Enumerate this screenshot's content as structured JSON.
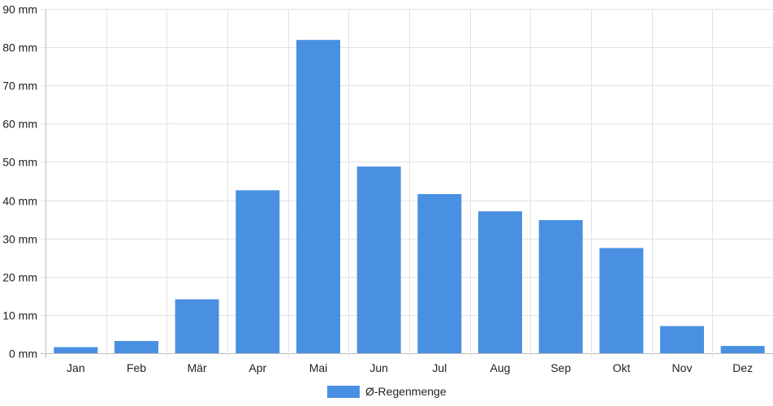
{
  "chart_data": {
    "type": "bar",
    "title": "",
    "xlabel": "",
    "ylabel": "",
    "categories": [
      "Jan",
      "Feb",
      "Mär",
      "Apr",
      "Mai",
      "Jun",
      "Jul",
      "Aug",
      "Sep",
      "Okt",
      "Nov",
      "Dez"
    ],
    "series": [
      {
        "name": "Ø-Regenmenge",
        "color": "#4a90e2",
        "values": [
          1.6,
          3.2,
          14.1,
          42.6,
          81.9,
          48.8,
          41.6,
          37.1,
          34.8,
          27.5,
          7.1,
          1.9
        ]
      }
    ],
    "unit": "mm",
    "ylim": [
      0,
      90
    ],
    "yticks": [
      0,
      10,
      20,
      30,
      40,
      50,
      60,
      70,
      80,
      90
    ],
    "ytick_labels": [
      "0 mm",
      "10 mm",
      "20 mm",
      "30 mm",
      "40 mm",
      "50 mm",
      "60 mm",
      "70 mm",
      "80 mm",
      "90 mm"
    ],
    "grid": true,
    "legend_position": "bottom"
  }
}
